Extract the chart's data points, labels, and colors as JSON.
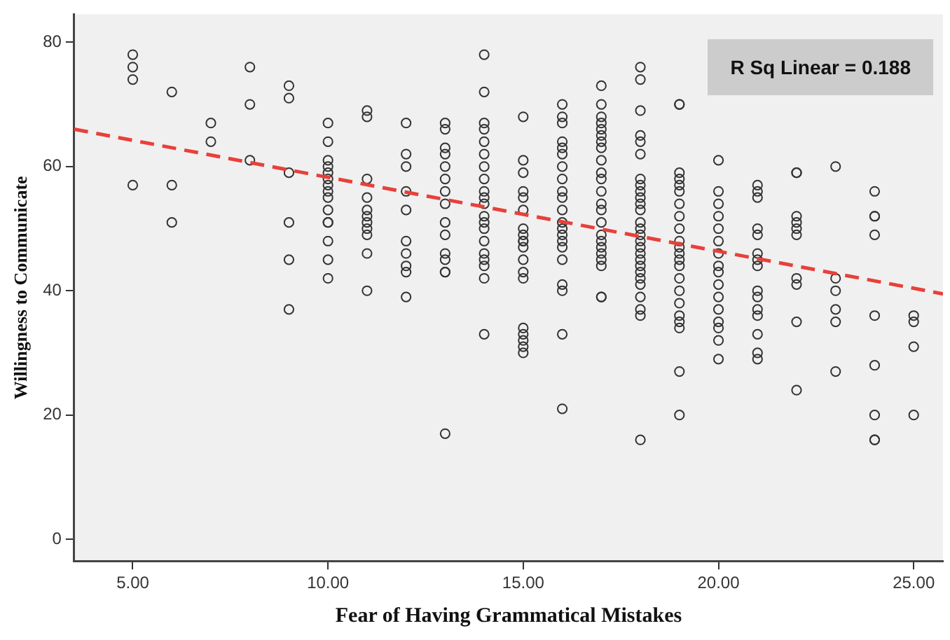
{
  "chart_data": {
    "type": "scatter",
    "xlabel": "Fear of Having Grammatical Mistakes",
    "ylabel": "Willingness to Communicate",
    "annotations": [
      "R Sq Linear = 0.188"
    ],
    "xlim": [
      3.5,
      25.75
    ],
    "ylim": [
      -3.5,
      84.5
    ],
    "xticks": [
      {
        "value": 5,
        "label": "5.00"
      },
      {
        "value": 10,
        "label": "10.00"
      },
      {
        "value": 15,
        "label": "15.00"
      },
      {
        "value": 20,
        "label": "20.00"
      },
      {
        "value": 25,
        "label": "25.00"
      }
    ],
    "yticks": [
      0,
      20,
      40,
      60,
      80
    ],
    "grid": false,
    "legend": false,
    "marker": "circle",
    "series": [
      {
        "type": "scatter",
        "color": "#333333",
        "x": [
          5,
          5,
          5,
          5,
          6,
          6,
          6,
          7,
          7,
          8,
          8,
          8,
          9,
          9,
          9,
          9,
          9,
          9,
          10,
          10,
          10,
          10,
          10,
          10,
          10,
          10,
          10,
          10,
          10,
          10,
          10,
          10,
          10,
          11,
          11,
          11,
          11,
          11,
          11,
          11,
          11,
          11,
          11,
          11,
          12,
          12,
          12,
          12,
          12,
          12,
          12,
          12,
          12,
          12,
          13,
          13,
          13,
          13,
          13,
          13,
          13,
          13,
          13,
          13,
          13,
          13,
          13,
          13,
          13,
          14,
          14,
          14,
          14,
          14,
          14,
          14,
          14,
          14,
          14,
          14,
          14,
          14,
          14,
          14,
          14,
          14,
          14,
          14,
          14,
          15,
          15,
          15,
          15,
          15,
          15,
          15,
          15,
          15,
          15,
          15,
          15,
          15,
          15,
          15,
          15,
          15,
          15,
          15,
          16,
          16,
          16,
          16,
          16,
          16,
          16,
          16,
          16,
          16,
          16,
          16,
          16,
          16,
          16,
          16,
          16,
          16,
          16,
          16,
          16,
          17,
          17,
          17,
          17,
          17,
          17,
          17,
          17,
          17,
          17,
          17,
          17,
          17,
          17,
          17,
          17,
          17,
          17,
          17,
          17,
          17,
          17,
          17,
          18,
          18,
          18,
          18,
          18,
          18,
          18,
          18,
          18,
          18,
          18,
          18,
          18,
          18,
          18,
          18,
          18,
          18,
          18,
          18,
          18,
          18,
          18,
          18,
          18,
          18,
          18,
          19,
          19,
          19,
          19,
          19,
          19,
          19,
          19,
          19,
          19,
          19,
          19,
          19,
          19,
          19,
          19,
          19,
          19,
          19,
          19,
          19,
          19,
          20,
          20,
          20,
          20,
          20,
          20,
          20,
          20,
          20,
          20,
          20,
          20,
          20,
          20,
          20,
          20,
          21,
          21,
          21,
          21,
          21,
          21,
          21,
          21,
          21,
          21,
          21,
          21,
          21,
          21,
          21,
          22,
          22,
          22,
          22,
          22,
          22,
          22,
          22,
          22,
          22,
          23,
          23,
          23,
          23,
          23,
          23,
          24,
          24,
          24,
          24,
          24,
          24,
          24,
          24,
          24,
          25,
          25,
          25,
          25
        ],
        "values": [
          78,
          76,
          74,
          57,
          72,
          57,
          51,
          67,
          64,
          76,
          70,
          61,
          73,
          71,
          59,
          51,
          45,
          37,
          67,
          64,
          61,
          60,
          59,
          58,
          57,
          56,
          55,
          53,
          51,
          51,
          48,
          45,
          42,
          69,
          68,
          58,
          55,
          53,
          52,
          51,
          50,
          49,
          46,
          40,
          67,
          62,
          60,
          56,
          53,
          48,
          46,
          44,
          43,
          39,
          67,
          66,
          63,
          62,
          60,
          58,
          56,
          54,
          51,
          49,
          46,
          45,
          43,
          43,
          17,
          78,
          72,
          67,
          66,
          64,
          62,
          60,
          58,
          56,
          55,
          54,
          52,
          51,
          50,
          48,
          46,
          45,
          44,
          42,
          33,
          68,
          61,
          59,
          56,
          55,
          53,
          50,
          49,
          48,
          48,
          47,
          45,
          43,
          42,
          34,
          33,
          32,
          31,
          30,
          70,
          68,
          67,
          64,
          63,
          62,
          60,
          58,
          56,
          55,
          53,
          51,
          50,
          49,
          48,
          47,
          45,
          41,
          40,
          33,
          21,
          73,
          70,
          68,
          67,
          66,
          65,
          64,
          63,
          61,
          59,
          58,
          56,
          54,
          53,
          51,
          49,
          48,
          47,
          46,
          45,
          44,
          39,
          39,
          76,
          74,
          69,
          65,
          64,
          62,
          58,
          57,
          56,
          55,
          54,
          53,
          51,
          50,
          49,
          48,
          47,
          46,
          45,
          44,
          43,
          42,
          41,
          39,
          37,
          36,
          16,
          70,
          70,
          59,
          58,
          57,
          56,
          54,
          52,
          50,
          48,
          47,
          46,
          45,
          44,
          42,
          40,
          38,
          36,
          35,
          34,
          27,
          20,
          61,
          56,
          54,
          52,
          50,
          48,
          46,
          44,
          43,
          41,
          39,
          37,
          35,
          34,
          32,
          29,
          57,
          56,
          55,
          50,
          49,
          46,
          45,
          44,
          40,
          39,
          37,
          36,
          33,
          30,
          29,
          59,
          59,
          52,
          51,
          50,
          49,
          42,
          41,
          35,
          24,
          60,
          42,
          40,
          37,
          35,
          27,
          56,
          52,
          52,
          49,
          36,
          28,
          20,
          16,
          16,
          36,
          35,
          31,
          20
        ]
      },
      {
        "type": "line",
        "color": "#e8403a",
        "line_style": "dashed",
        "marker": "none",
        "x": [
          3.5,
          25.75
        ],
        "values": [
          66,
          39.5
        ]
      }
    ]
  }
}
